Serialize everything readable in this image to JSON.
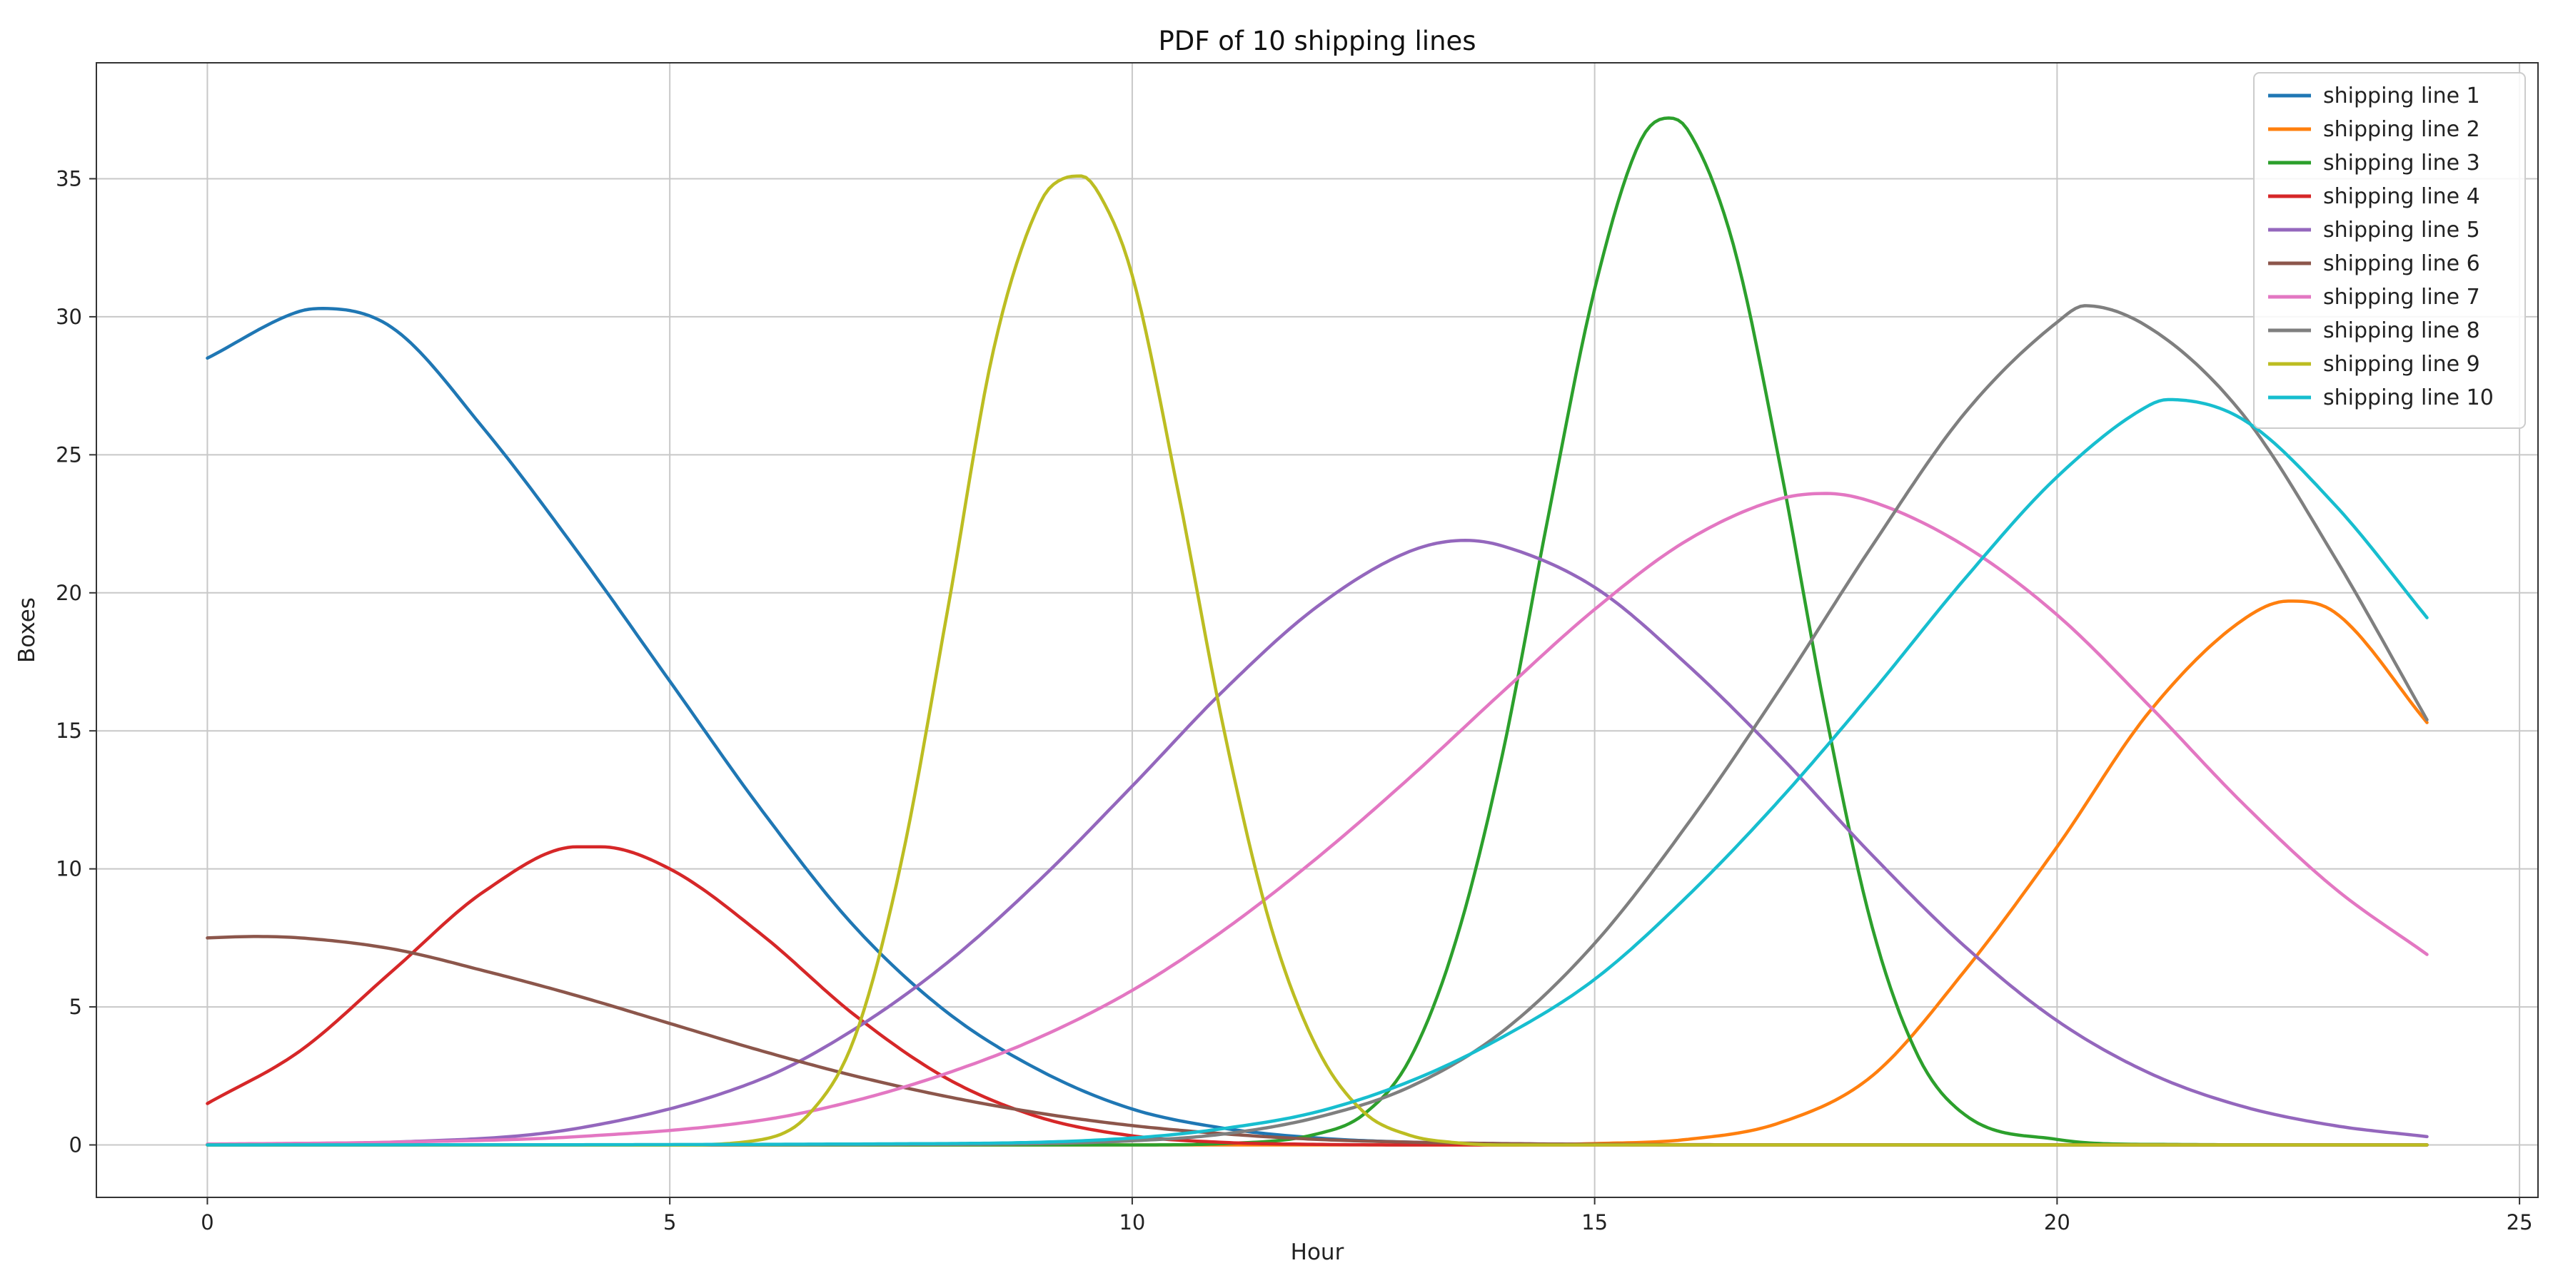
{
  "chart_data": {
    "type": "line",
    "title": "PDF of 10 shipping lines",
    "xlabel": "Hour",
    "ylabel": "Boxes",
    "xlim": [
      -1.2,
      25.2
    ],
    "ylim": [
      -1.9,
      39.2
    ],
    "x_ticks": [
      0,
      5,
      10,
      15,
      20,
      25
    ],
    "y_ticks": [
      0,
      5,
      10,
      15,
      20,
      25,
      30,
      35
    ],
    "grid": true,
    "legend_position": "top-right",
    "x_domain": [
      0,
      24
    ],
    "series": [
      {
        "name": "shipping line 1",
        "color": "#1f77b4",
        "x": [
          0,
          1,
          1.25,
          2,
          3,
          4,
          5,
          6,
          7,
          8,
          9,
          10,
          11,
          12,
          13,
          14,
          15,
          16,
          18,
          20,
          24
        ],
        "y": [
          28.5,
          30.2,
          30.3,
          29.6,
          25.9,
          21.5,
          16.8,
          12.1,
          7.9,
          4.8,
          2.7,
          1.3,
          0.6,
          0.25,
          0.1,
          0.04,
          0.01,
          0,
          0,
          0,
          0
        ]
      },
      {
        "name": "shipping line 2",
        "color": "#ff7f0e",
        "x": [
          0,
          14,
          15,
          16,
          17,
          18,
          19,
          20,
          21,
          22,
          22.5,
          23,
          24
        ],
        "y": [
          0,
          0,
          0.05,
          0.2,
          0.8,
          2.5,
          6.3,
          10.8,
          15.7,
          19.0,
          19.7,
          19.3,
          15.3
        ]
      },
      {
        "name": "shipping line 3",
        "color": "#2ca02c",
        "x": [
          0,
          10,
          11,
          12,
          12.5,
          13,
          13.5,
          14,
          14.5,
          15,
          15.5,
          15.8,
          16,
          16.5,
          17,
          17.5,
          18,
          18.5,
          19,
          20,
          21,
          24
        ],
        "y": [
          0,
          0,
          0.05,
          0.4,
          1.1,
          3.1,
          7.4,
          14.1,
          22.8,
          31.0,
          36.4,
          37.2,
          36.8,
          32.6,
          24.7,
          15.6,
          7.9,
          3.2,
          1.1,
          0.2,
          0.02,
          0
        ]
      },
      {
        "name": "shipping line 4",
        "color": "#d62728",
        "x": [
          0,
          1,
          2,
          3,
          4,
          4.25,
          5,
          6,
          7,
          8,
          9,
          10,
          11,
          12,
          13,
          24
        ],
        "y": [
          1.5,
          3.4,
          6.3,
          9.2,
          10.8,
          10.8,
          10.0,
          7.6,
          4.7,
          2.4,
          1.0,
          0.33,
          0.09,
          0.02,
          0,
          0
        ]
      },
      {
        "name": "shipping line 5",
        "color": "#9467bd",
        "x": [
          0,
          2,
          4,
          6,
          7,
          8,
          9,
          10,
          11,
          12,
          13,
          13.6,
          14,
          15,
          16,
          17,
          18,
          19,
          20,
          21,
          22,
          23,
          24
        ],
        "y": [
          0.01,
          0.1,
          0.6,
          2.4,
          4.2,
          6.6,
          9.6,
          13.0,
          16.5,
          19.5,
          21.5,
          21.9,
          21.7,
          20.2,
          17.4,
          14.1,
          10.5,
          7.2,
          4.5,
          2.6,
          1.4,
          0.7,
          0.3
        ]
      },
      {
        "name": "shipping line 6",
        "color": "#8c564b",
        "x": [
          0,
          0.5,
          1,
          2,
          3,
          4,
          5,
          6,
          7,
          8,
          9,
          10,
          11,
          12,
          13,
          14,
          16,
          24
        ],
        "y": [
          7.5,
          7.55,
          7.5,
          7.1,
          6.3,
          5.4,
          4.4,
          3.4,
          2.5,
          1.75,
          1.15,
          0.7,
          0.4,
          0.2,
          0.1,
          0.05,
          0.01,
          0
        ]
      },
      {
        "name": "shipping line 7",
        "color": "#e377c2",
        "x": [
          0,
          2,
          4,
          6,
          7,
          8,
          9,
          10,
          11,
          12,
          13,
          14,
          15,
          16,
          17,
          17.5,
          18,
          19,
          20,
          21,
          22,
          23,
          24
        ],
        "y": [
          0.03,
          0.1,
          0.3,
          0.9,
          1.6,
          2.6,
          3.9,
          5.6,
          7.8,
          10.4,
          13.3,
          16.4,
          19.4,
          21.9,
          23.4,
          23.6,
          23.3,
          21.7,
          19.2,
          15.9,
          12.4,
          9.3,
          6.9
        ]
      },
      {
        "name": "shipping line 8",
        "color": "#7f7f7f",
        "x": [
          0,
          8,
          10,
          11,
          12,
          13,
          14,
          15,
          16,
          17,
          18,
          19,
          20,
          20.3,
          21,
          22,
          23,
          24
        ],
        "y": [
          0,
          0.02,
          0.15,
          0.4,
          1.0,
          2.1,
          4.1,
          7.3,
          11.6,
          16.5,
          21.7,
          26.5,
          29.8,
          30.4,
          29.6,
          26.5,
          21.3,
          15.4
        ]
      },
      {
        "name": "shipping line 9",
        "color": "#bcbd22",
        "x": [
          0,
          5,
          6,
          6.5,
          7,
          7.5,
          8,
          8.5,
          9,
          9.25,
          9.45,
          9.65,
          10,
          10.5,
          11,
          11.5,
          12,
          12.5,
          13,
          13.5,
          14,
          24
        ],
        "y": [
          0,
          0,
          0.2,
          1.1,
          3.9,
          10.2,
          19.3,
          28.8,
          34.1,
          35.0,
          35.1,
          34.4,
          31.5,
          23.6,
          14.9,
          7.9,
          3.5,
          1.2,
          0.35,
          0.08,
          0,
          0
        ]
      },
      {
        "name": "shipping line 10",
        "color": "#17becf",
        "x": [
          0,
          8,
          10,
          11,
          12,
          13,
          14,
          15,
          16,
          17,
          18,
          19,
          20,
          21,
          21.2,
          22,
          23,
          24
        ],
        "y": [
          0,
          0.05,
          0.25,
          0.6,
          1.2,
          2.3,
          3.9,
          6.0,
          9.0,
          12.5,
          16.4,
          20.5,
          24.2,
          26.8,
          27.0,
          26.3,
          23.2,
          19.1
        ]
      }
    ]
  }
}
